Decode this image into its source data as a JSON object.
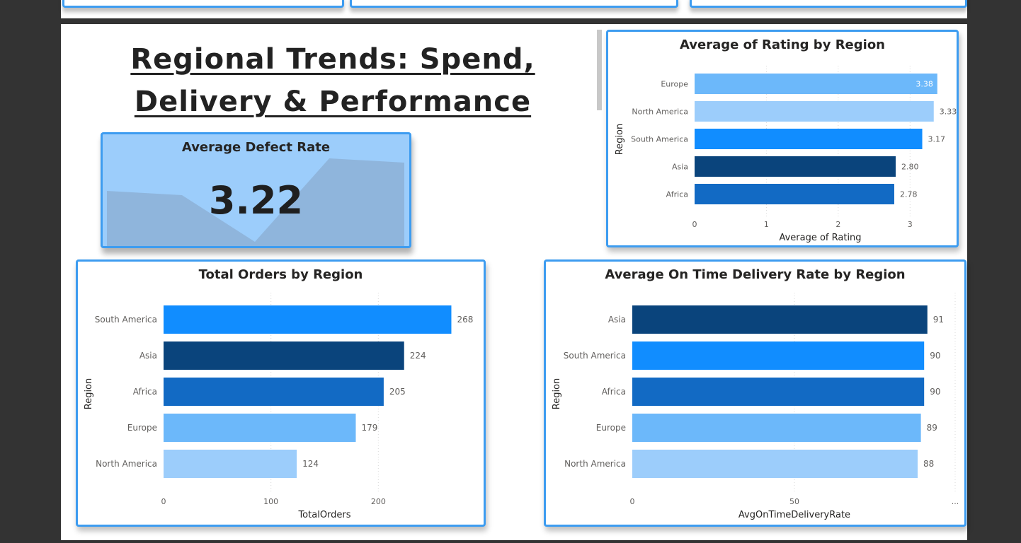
{
  "page": {
    "title": "Regional Trends: Spend, Delivery & Performance"
  },
  "kpi": {
    "title": "Average Defect Rate",
    "value": "3.22",
    "sparkline_color": "#8fb5dc"
  },
  "colors": {
    "accent_border": "#3d9cf0",
    "region": {
      "Europe": "#6cb8fa",
      "North America": "#9ccdfb",
      "South America": "#118dff",
      "Asia": "#0a447c",
      "Africa": "#126ac4"
    }
  },
  "chart_data": [
    {
      "id": "rating",
      "type": "bar",
      "orientation": "horizontal",
      "title": "Average of Rating by Region",
      "xlabel": "Average of Rating",
      "ylabel": "Region",
      "categories": [
        "Europe",
        "North America",
        "South America",
        "Asia",
        "Africa"
      ],
      "values": [
        3.38,
        3.33,
        3.17,
        2.8,
        2.78
      ],
      "value_labels": [
        "3.38",
        "3.33",
        "3.17",
        "2.80",
        "2.78"
      ],
      "xlim": [
        0,
        3.5
      ],
      "xticks": [
        0,
        1,
        2,
        3
      ],
      "grid": true
    },
    {
      "id": "orders",
      "type": "bar",
      "orientation": "horizontal",
      "title": "Total Orders by Region",
      "xlabel": "TotalOrders",
      "ylabel": "Region",
      "categories": [
        "South America",
        "Asia",
        "Africa",
        "Europe",
        "North America"
      ],
      "values": [
        268,
        224,
        205,
        179,
        124
      ],
      "value_labels": [
        "268",
        "224",
        "205",
        "179",
        "124"
      ],
      "xlim": [
        0,
        300
      ],
      "xticks": [
        0,
        100,
        200
      ],
      "grid": true
    },
    {
      "id": "delivery",
      "type": "bar",
      "orientation": "horizontal",
      "title": "Average On Time Delivery Rate by Region",
      "xlabel": "AvgOnTimeDeliveryRate",
      "ylabel": "Region",
      "categories": [
        "Asia",
        "South America",
        "Africa",
        "Europe",
        "North America"
      ],
      "values": [
        91,
        90,
        90,
        89,
        88
      ],
      "value_labels": [
        "91",
        "90",
        "90",
        "89",
        "88"
      ],
      "xlim": [
        0,
        100
      ],
      "xticks": [
        0,
        50
      ],
      "xticks_overflow": "...",
      "grid": true
    }
  ]
}
